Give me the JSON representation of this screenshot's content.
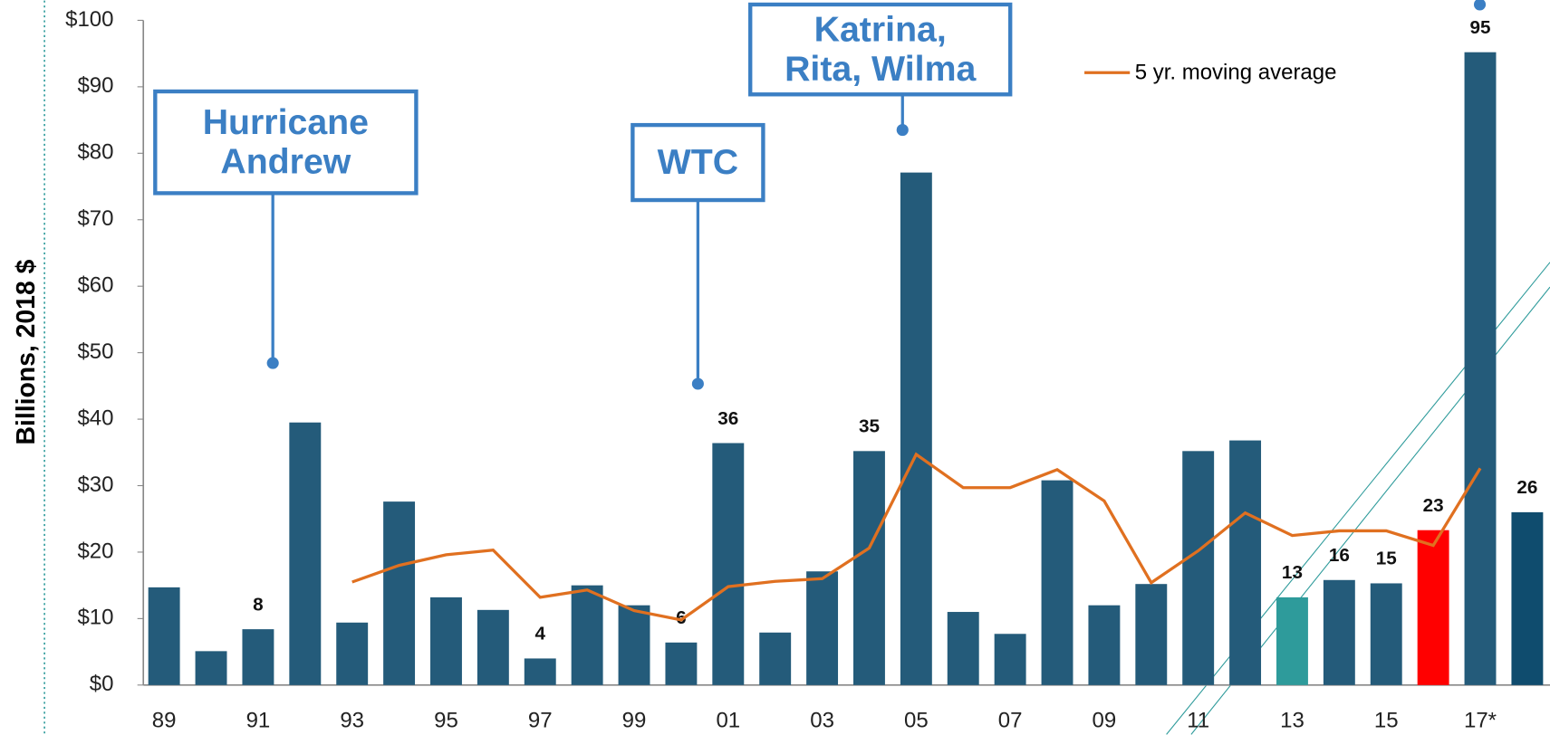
{
  "chart_data": {
    "type": "bar",
    "y_label": "Billions, 2018 $",
    "categories": [
      "89",
      null,
      "91",
      null,
      "93",
      null,
      "95",
      null,
      "97",
      null,
      "99",
      null,
      "01",
      null,
      "03",
      null,
      "05",
      null,
      "07",
      null,
      "09",
      null,
      "11",
      null,
      "13",
      null,
      "15",
      null,
      "17*",
      null
    ],
    "series": [
      {
        "name": null,
        "type": "bar",
        "colors": [
          "#245b7a",
          "#245b7a",
          "#245b7a",
          "#245b7a",
          "#245b7a",
          "#245b7a",
          "#245b7a",
          "#245b7a",
          "#245b7a",
          "#245b7a",
          "#245b7a",
          "#245b7a",
          "#245b7a",
          "#245b7a",
          "#245b7a",
          "#245b7a",
          "#245b7a",
          "#245b7a",
          "#245b7a",
          "#245b7a",
          "#245b7a",
          "#245b7a",
          "#245b7a",
          "#245b7a",
          "#2e9b9b",
          "#245b7a",
          "#245b7a",
          "#ff0000",
          "#245b7a",
          "#0f4c6e"
        ],
        "values": [
          14.7,
          5.1,
          8.4,
          39.5,
          9.4,
          27.6,
          13.2,
          11.3,
          4.0,
          15.0,
          12.0,
          6.4,
          36.4,
          7.9,
          17.1,
          35.2,
          77.1,
          11.0,
          7.7,
          30.8,
          12.0,
          15.2,
          35.2,
          36.8,
          13.2,
          15.8,
          15.3,
          23.3,
          95.2,
          26.0
        ],
        "value_labels": [
          null,
          null,
          "8",
          null,
          null,
          null,
          null,
          null,
          "4",
          null,
          null,
          "6",
          "36",
          null,
          null,
          "35",
          null,
          null,
          null,
          null,
          null,
          null,
          null,
          null,
          "13",
          "16",
          "15",
          "23",
          "95",
          "26"
        ]
      },
      {
        "name": "5 yr. moving average",
        "type": "line",
        "color": "#e07020",
        "values": [
          null,
          null,
          null,
          null,
          15.5,
          18.0,
          19.6,
          20.3,
          13.2,
          14.3,
          11.2,
          9.8,
          14.8,
          15.6,
          16.0,
          20.6,
          34.7,
          29.7,
          29.7,
          32.4,
          27.7,
          15.4,
          20.2,
          25.9,
          22.5,
          23.2,
          23.2,
          21.0,
          32.6,
          null
        ]
      }
    ],
    "ylim": [
      0,
      100
    ],
    "yticks": [
      {
        "value": 0,
        "label": "$0"
      },
      {
        "value": 10,
        "label": "$10"
      },
      {
        "value": 20,
        "label": "$20"
      },
      {
        "value": 30,
        "label": "$30"
      },
      {
        "value": 40,
        "label": "$40"
      },
      {
        "value": 50,
        "label": "$50"
      },
      {
        "value": 60,
        "label": "$60"
      },
      {
        "value": 70,
        "label": "$70"
      },
      {
        "value": 80,
        "label": "$80"
      },
      {
        "value": 90,
        "label": "$90"
      },
      {
        "value": 100,
        "label": "$100"
      }
    ],
    "annotations": [
      {
        "lines": [
          "Hurricane",
          "Andrew"
        ]
      },
      {
        "lines": [
          "WTC"
        ]
      },
      {
        "lines": [
          "Katrina,",
          "Rita, Wilma"
        ]
      }
    ]
  }
}
